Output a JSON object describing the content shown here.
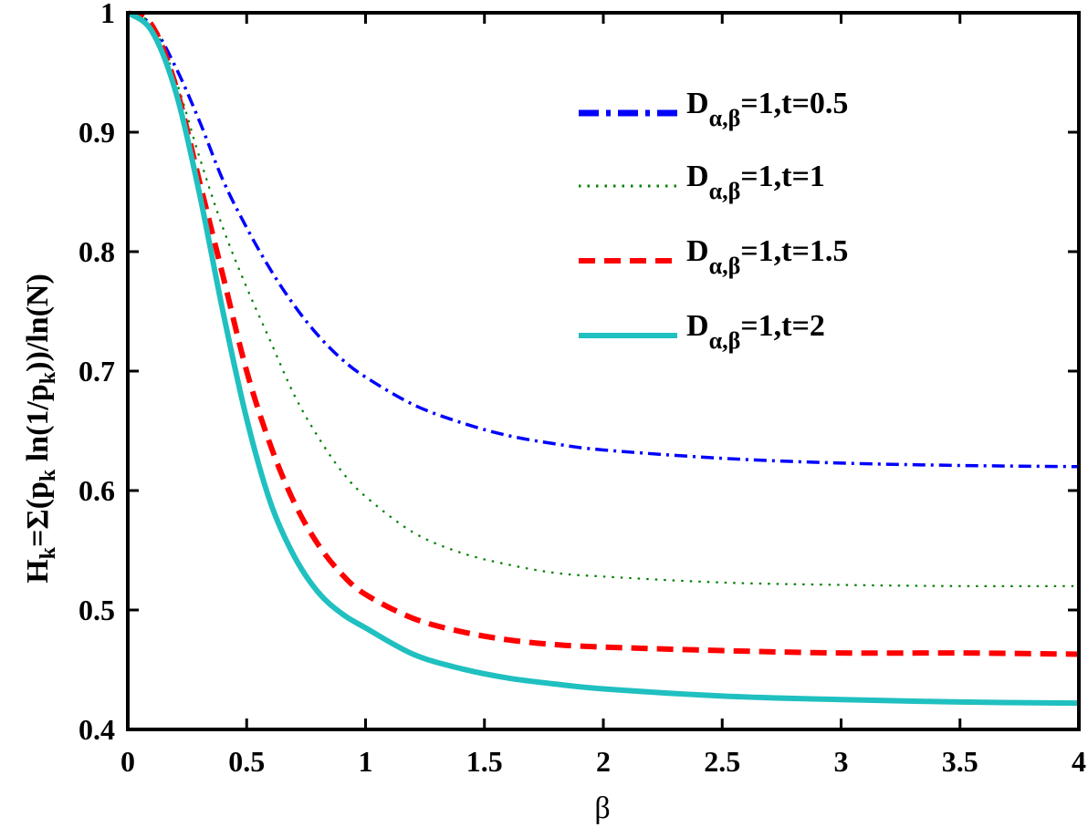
{
  "chart_data": {
    "type": "line",
    "title": "",
    "xlabel": "β",
    "ylabel": {
      "parts": [
        "H",
        "k",
        "=Σ(p",
        "k",
        " ln(1/p",
        "k",
        "))/ln(N)"
      ]
    },
    "xlim": [
      0,
      4
    ],
    "ylim": [
      0.4,
      1.0
    ],
    "x_ticks": [
      0,
      0.5,
      1,
      1.5,
      2,
      2.5,
      3,
      3.5,
      4
    ],
    "x_tick_labels": [
      "0",
      "0.5",
      "1",
      "1.5",
      "2",
      "2.5",
      "3",
      "3.5",
      "4"
    ],
    "y_ticks": [
      0.4,
      0.5,
      0.6,
      0.7,
      0.8,
      0.9,
      1.0
    ],
    "y_tick_labels": [
      "0.4",
      "0.5",
      "0.6",
      "0.7",
      "0.8",
      "0.9",
      "1"
    ],
    "grid": false,
    "legend_position": "top-right",
    "series": [
      {
        "name": "D_{α,β}=1,t=0.5",
        "legend": {
          "base": "D",
          "sub": "α,β",
          "rest": "=1,t=0.5"
        },
        "color": "#0000ff",
        "style": "dashdot",
        "x": [
          0,
          0.1,
          0.2,
          0.3,
          0.4,
          0.5,
          0.6,
          0.7,
          0.8,
          0.9,
          1.0,
          1.2,
          1.4,
          1.6,
          1.8,
          2.0,
          2.5,
          3.0,
          3.5,
          4.0
        ],
        "y": [
          1.0,
          0.99,
          0.955,
          0.91,
          0.86,
          0.82,
          0.785,
          0.755,
          0.73,
          0.71,
          0.695,
          0.672,
          0.657,
          0.646,
          0.639,
          0.634,
          0.627,
          0.623,
          0.621,
          0.62
        ]
      },
      {
        "name": "D_{α,β}=1,t=1",
        "legend": {
          "base": "D",
          "sub": "α,β",
          "rest": "=1,t=1"
        },
        "color": "#008000",
        "style": "dotted",
        "x": [
          0,
          0.1,
          0.2,
          0.3,
          0.4,
          0.5,
          0.6,
          0.7,
          0.8,
          0.9,
          1.0,
          1.2,
          1.4,
          1.6,
          1.8,
          2.0,
          2.5,
          3.0,
          3.5,
          4.0
        ],
        "y": [
          1.0,
          0.99,
          0.945,
          0.88,
          0.82,
          0.77,
          0.725,
          0.68,
          0.645,
          0.616,
          0.595,
          0.565,
          0.548,
          0.538,
          0.531,
          0.528,
          0.523,
          0.521,
          0.52,
          0.52
        ]
      },
      {
        "name": "D_{α,β}=1,t=1.5",
        "legend": {
          "base": "D",
          "sub": "α,β",
          "rest": "=1,t=1.5"
        },
        "color": "#ff0000",
        "style": "dashed",
        "x": [
          0,
          0.1,
          0.2,
          0.3,
          0.4,
          0.5,
          0.6,
          0.7,
          0.8,
          0.9,
          1.0,
          1.2,
          1.4,
          1.6,
          1.8,
          2.0,
          2.5,
          3.0,
          3.5,
          4.0
        ],
        "y": [
          1.0,
          0.99,
          0.94,
          0.86,
          0.78,
          0.7,
          0.638,
          0.59,
          0.555,
          0.53,
          0.513,
          0.493,
          0.482,
          0.475,
          0.471,
          0.469,
          0.466,
          0.464,
          0.464,
          0.463
        ]
      },
      {
        "name": "D_{α,β}=1,t=2",
        "legend": {
          "base": "D",
          "sub": "α,β",
          "rest": "=1,t=2"
        },
        "color": "#20c0c0",
        "style": "solid",
        "x": [
          0,
          0.1,
          0.2,
          0.3,
          0.4,
          0.5,
          0.6,
          0.7,
          0.8,
          0.9,
          1.0,
          1.2,
          1.4,
          1.6,
          1.8,
          2.0,
          2.5,
          3.0,
          3.5,
          4.0
        ],
        "y": [
          1.0,
          0.985,
          0.935,
          0.85,
          0.75,
          0.66,
          0.59,
          0.545,
          0.515,
          0.497,
          0.485,
          0.463,
          0.451,
          0.443,
          0.438,
          0.434,
          0.428,
          0.425,
          0.423,
          0.422
        ]
      }
    ]
  }
}
